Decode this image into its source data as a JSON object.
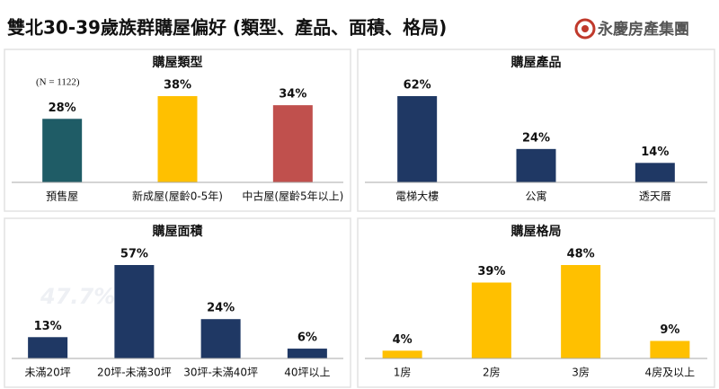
{
  "title": "雙北30-39歲族群購屋偏好 (類型、產品、面積、格局)",
  "brand": "永慶房產集團",
  "chart_data": [
    {
      "type": "bar",
      "title": "購屋類型",
      "note": "(N = 1122)",
      "categories": [
        "預售屋",
        "新成屋(屋齡0-5年)",
        "中古屋(屋齡5年以上)"
      ],
      "values": [
        28,
        38,
        34
      ],
      "value_labels": [
        "28%",
        "38%",
        "34%"
      ],
      "colors": [
        "#1f5c66",
        "#ffc000",
        "#c0504d"
      ]
    },
    {
      "type": "bar",
      "title": "購屋產品",
      "categories": [
        "電梯大樓",
        "公寓",
        "透天厝"
      ],
      "values": [
        62,
        24,
        14
      ],
      "value_labels": [
        "62%",
        "24%",
        "14%"
      ],
      "color": "#1f3864"
    },
    {
      "type": "bar",
      "title": "購屋面積",
      "watermark": "47.7%",
      "categories": [
        "未滿20坪",
        "20坪-未滿30坪",
        "30坪-未滿40坪",
        "40坪以上"
      ],
      "values": [
        13,
        57,
        24,
        6
      ],
      "value_labels": [
        "13%",
        "57%",
        "24%",
        "6%"
      ],
      "color": "#1f3864"
    },
    {
      "type": "bar",
      "title": "購屋格局",
      "categories": [
        "1房",
        "2房",
        "3房",
        "4房及以上"
      ],
      "values": [
        4,
        39,
        48,
        9
      ],
      "value_labels": [
        "4%",
        "39%",
        "48%",
        "9%"
      ],
      "color": "#ffc000"
    }
  ]
}
